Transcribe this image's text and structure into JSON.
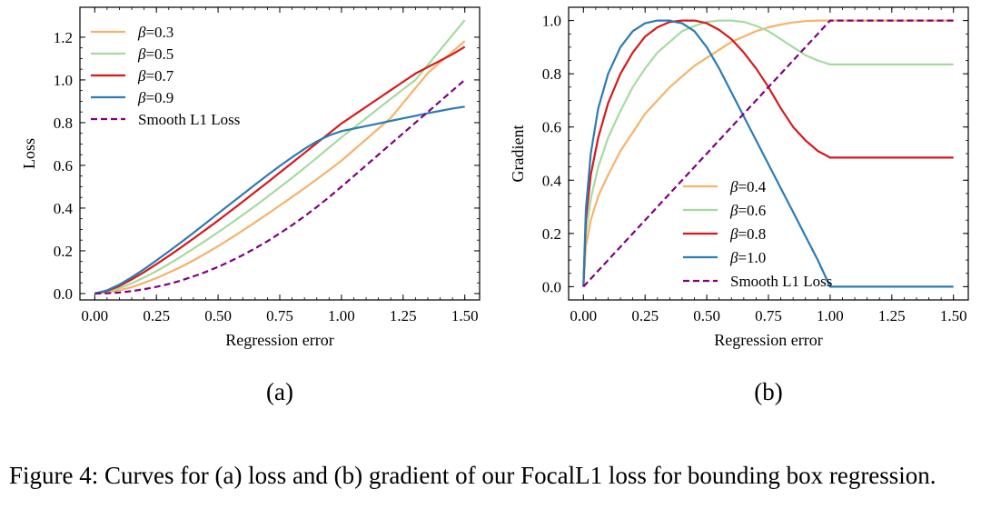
{
  "chart_data": [
    {
      "type": "line",
      "panel_label": "(a)",
      "xlabel": "Regression error",
      "ylabel": "Loss",
      "xlim": [
        -0.06,
        1.56
      ],
      "ylim": [
        -0.03,
        1.34
      ],
      "xticks": [
        0.0,
        0.25,
        0.5,
        0.75,
        1.0,
        1.25,
        1.5
      ],
      "xtick_labels": [
        "0.00",
        "0.25",
        "0.50",
        "0.75",
        "1.00",
        "1.25",
        "1.50"
      ],
      "yticks": [
        0.0,
        0.2,
        0.4,
        0.6,
        0.8,
        1.0,
        1.2
      ],
      "ytick_labels": [
        "0.0",
        "0.2",
        "0.4",
        "0.6",
        "0.8",
        "1.0",
        "1.2"
      ],
      "legend_position": "top-left",
      "series": [
        {
          "name": "β=0.3",
          "legend_prefix": "β",
          "legend_suffix": "=0.3",
          "color": "#f7b26b",
          "style": "solid",
          "x": [
            0,
            0.05,
            0.1,
            0.15,
            0.2,
            0.25,
            0.3,
            0.35,
            0.4,
            0.45,
            0.5,
            0.55,
            0.6,
            0.65,
            0.7,
            0.75,
            0.8,
            0.85,
            0.9,
            0.95,
            1.0,
            1.05,
            1.1,
            1.15,
            1.2,
            1.25,
            1.3,
            1.35,
            1.4,
            1.45,
            1.5
          ],
          "y": [
            0,
            0.005,
            0.015,
            0.03,
            0.05,
            0.072,
            0.098,
            0.125,
            0.155,
            0.188,
            0.222,
            0.258,
            0.295,
            0.333,
            0.372,
            0.412,
            0.452,
            0.493,
            0.535,
            0.578,
            0.622,
            0.672,
            0.722,
            0.772,
            0.822,
            0.892,
            0.962,
            1.032,
            1.082,
            1.132,
            1.182
          ]
        },
        {
          "name": "β=0.5",
          "legend_prefix": "β",
          "legend_suffix": "=0.5",
          "color": "#a6dba0",
          "style": "solid",
          "x": [
            0,
            0.05,
            0.1,
            0.15,
            0.2,
            0.25,
            0.3,
            0.35,
            0.4,
            0.45,
            0.5,
            0.55,
            0.6,
            0.65,
            0.7,
            0.75,
            0.8,
            0.85,
            0.9,
            0.95,
            1.0,
            1.05,
            1.1,
            1.15,
            1.2,
            1.25,
            1.3,
            1.35,
            1.4,
            1.45,
            1.5
          ],
          "y": [
            0,
            0.008,
            0.025,
            0.048,
            0.075,
            0.105,
            0.138,
            0.173,
            0.21,
            0.248,
            0.287,
            0.327,
            0.368,
            0.41,
            0.453,
            0.497,
            0.542,
            0.588,
            0.635,
            0.683,
            0.731,
            0.776,
            0.821,
            0.866,
            0.911,
            0.956,
            1.0,
            1.07,
            1.14,
            1.21,
            1.28
          ]
        },
        {
          "name": "β=0.7",
          "legend_prefix": "β",
          "legend_suffix": "=0.7",
          "color": "#d7191c",
          "style": "solid",
          "x": [
            0,
            0.05,
            0.1,
            0.15,
            0.2,
            0.25,
            0.3,
            0.35,
            0.4,
            0.45,
            0.5,
            0.55,
            0.6,
            0.65,
            0.7,
            0.75,
            0.8,
            0.85,
            0.9,
            0.95,
            1.0,
            1.05,
            1.1,
            1.15,
            1.2,
            1.25,
            1.3,
            1.35,
            1.4,
            1.45,
            1.5
          ],
          "y": [
            0,
            0.012,
            0.035,
            0.066,
            0.1,
            0.137,
            0.176,
            0.216,
            0.257,
            0.299,
            0.342,
            0.386,
            0.43,
            0.475,
            0.52,
            0.566,
            0.612,
            0.658,
            0.704,
            0.75,
            0.796,
            0.835,
            0.874,
            0.913,
            0.952,
            0.991,
            1.03,
            1.06,
            1.09,
            1.12,
            1.155
          ]
        },
        {
          "name": "β=0.9",
          "legend_prefix": "β",
          "legend_suffix": "=0.9",
          "color": "#2c7bb6",
          "style": "solid",
          "x": [
            0,
            0.05,
            0.1,
            0.15,
            0.2,
            0.25,
            0.3,
            0.35,
            0.4,
            0.45,
            0.5,
            0.55,
            0.6,
            0.65,
            0.7,
            0.75,
            0.8,
            0.85,
            0.9,
            0.95,
            1.0,
            1.05,
            1.1,
            1.15,
            1.2,
            1.25,
            1.3,
            1.35,
            1.4,
            1.45,
            1.5
          ],
          "y": [
            0,
            0.015,
            0.042,
            0.076,
            0.114,
            0.155,
            0.197,
            0.24,
            0.284,
            0.329,
            0.375,
            0.42,
            0.465,
            0.51,
            0.554,
            0.597,
            0.638,
            0.677,
            0.712,
            0.74,
            0.76,
            0.772,
            0.784,
            0.796,
            0.808,
            0.82,
            0.832,
            0.844,
            0.855,
            0.866,
            0.875
          ]
        },
        {
          "name": "Smooth L1 Loss",
          "legend_prefix": "",
          "legend_suffix": "Smooth L1 Loss",
          "color": "#800080",
          "style": "dashed",
          "x": [
            0,
            0.05,
            0.1,
            0.15,
            0.2,
            0.25,
            0.3,
            0.35,
            0.4,
            0.45,
            0.5,
            0.55,
            0.6,
            0.65,
            0.7,
            0.75,
            0.8,
            0.85,
            0.9,
            0.95,
            1.0,
            1.05,
            1.1,
            1.15,
            1.2,
            1.25,
            1.3,
            1.35,
            1.4,
            1.45,
            1.5
          ],
          "y": [
            0,
            0.00125,
            0.005,
            0.01125,
            0.02,
            0.03125,
            0.045,
            0.06125,
            0.08,
            0.10125,
            0.125,
            0.15125,
            0.18,
            0.21125,
            0.245,
            0.28125,
            0.32,
            0.36125,
            0.405,
            0.45125,
            0.5,
            0.55,
            0.6,
            0.65,
            0.7,
            0.75,
            0.8,
            0.85,
            0.9,
            0.95,
            1.0
          ]
        }
      ]
    },
    {
      "type": "line",
      "panel_label": "(b)",
      "xlabel": "Regression error",
      "ylabel": "Gradient",
      "xlim": [
        -0.06,
        1.56
      ],
      "ylim": [
        -0.05,
        1.05
      ],
      "xticks": [
        0.0,
        0.25,
        0.5,
        0.75,
        1.0,
        1.25,
        1.5
      ],
      "xtick_labels": [
        "0.00",
        "0.25",
        "0.50",
        "0.75",
        "1.00",
        "1.25",
        "1.50"
      ],
      "yticks": [
        0.0,
        0.2,
        0.4,
        0.6,
        0.8,
        1.0
      ],
      "ytick_labels": [
        "0.0",
        "0.2",
        "0.4",
        "0.6",
        "0.8",
        "1.0"
      ],
      "legend_position": "center",
      "series": [
        {
          "name": "β=0.4",
          "legend_prefix": "β",
          "legend_suffix": "=0.4",
          "color": "#f7b26b",
          "style": "solid",
          "x": [
            0,
            0.01,
            0.03,
            0.06,
            0.1,
            0.15,
            0.2,
            0.25,
            0.3,
            0.35,
            0.4,
            0.45,
            0.5,
            0.55,
            0.6,
            0.65,
            0.7,
            0.75,
            0.8,
            0.85,
            0.9,
            0.95,
            1.0,
            1.05,
            1.1,
            1.15,
            1.2,
            1.25,
            1.3,
            1.35,
            1.4,
            1.45,
            1.5
          ],
          "y": [
            0,
            0.15,
            0.25,
            0.34,
            0.42,
            0.51,
            0.58,
            0.65,
            0.7,
            0.75,
            0.79,
            0.83,
            0.86,
            0.89,
            0.92,
            0.94,
            0.96,
            0.975,
            0.985,
            0.993,
            0.998,
            1.0,
            1.0,
            1.0,
            1.0,
            1.0,
            1.0,
            1.0,
            1.0,
            1.0,
            1.0,
            1.0,
            1.0
          ]
        },
        {
          "name": "β=0.6",
          "legend_prefix": "β",
          "legend_suffix": "=0.6",
          "color": "#a6dba0",
          "style": "solid",
          "x": [
            0,
            0.01,
            0.03,
            0.06,
            0.1,
            0.15,
            0.2,
            0.25,
            0.3,
            0.35,
            0.4,
            0.45,
            0.5,
            0.55,
            0.6,
            0.65,
            0.7,
            0.75,
            0.8,
            0.85,
            0.9,
            0.95,
            1.0,
            1.05,
            1.1,
            1.15,
            1.2,
            1.25,
            1.3,
            1.35,
            1.4,
            1.45,
            1.5
          ],
          "y": [
            0,
            0.2,
            0.33,
            0.45,
            0.56,
            0.66,
            0.75,
            0.82,
            0.88,
            0.92,
            0.96,
            0.98,
            0.995,
            1.0,
            1.0,
            0.995,
            0.98,
            0.96,
            0.93,
            0.9,
            0.87,
            0.85,
            0.835,
            0.835,
            0.835,
            0.835,
            0.835,
            0.835,
            0.835,
            0.835,
            0.835,
            0.835,
            0.835
          ]
        },
        {
          "name": "β=0.8",
          "legend_prefix": "β",
          "legend_suffix": "=0.8",
          "color": "#d7191c",
          "style": "solid",
          "x": [
            0,
            0.01,
            0.03,
            0.06,
            0.1,
            0.15,
            0.2,
            0.25,
            0.3,
            0.35,
            0.4,
            0.45,
            0.5,
            0.55,
            0.6,
            0.65,
            0.7,
            0.75,
            0.8,
            0.85,
            0.9,
            0.95,
            1.0,
            1.05,
            1.1,
            1.15,
            1.2,
            1.25,
            1.3,
            1.35,
            1.4,
            1.45,
            1.5
          ],
          "y": [
            0,
            0.25,
            0.42,
            0.56,
            0.69,
            0.8,
            0.88,
            0.94,
            0.975,
            0.995,
            1.0,
            1.0,
            0.99,
            0.965,
            0.93,
            0.88,
            0.82,
            0.75,
            0.67,
            0.6,
            0.55,
            0.51,
            0.485,
            0.485,
            0.485,
            0.485,
            0.485,
            0.485,
            0.485,
            0.485,
            0.485,
            0.485,
            0.485
          ]
        },
        {
          "name": "β=1.0",
          "legend_prefix": "β",
          "legend_suffix": "=1.0",
          "color": "#2c7bb6",
          "style": "solid",
          "x": [
            0,
            0.01,
            0.03,
            0.06,
            0.1,
            0.15,
            0.2,
            0.25,
            0.3,
            0.35,
            0.37,
            0.4,
            0.45,
            0.5,
            0.55,
            0.6,
            0.65,
            0.7,
            0.75,
            0.8,
            0.85,
            0.9,
            0.95,
            1.0,
            1.05,
            1.1,
            1.15,
            1.2,
            1.25,
            1.3,
            1.35,
            1.4,
            1.45,
            1.5
          ],
          "y": [
            0,
            0.29,
            0.5,
            0.67,
            0.8,
            0.9,
            0.96,
            0.99,
            1.0,
            1.0,
            0.995,
            0.99,
            0.96,
            0.9,
            0.82,
            0.73,
            0.64,
            0.55,
            0.46,
            0.37,
            0.28,
            0.19,
            0.1,
            0.0,
            0.0,
            0.0,
            0.0,
            0.0,
            0.0,
            0.0,
            0.0,
            0.0,
            0.0,
            0.0
          ]
        },
        {
          "name": "Smooth L1 Loss",
          "legend_prefix": "",
          "legend_suffix": "Smooth L1 Loss",
          "color": "#800080",
          "style": "dashed",
          "x": [
            0,
            1.0,
            1.5
          ],
          "y": [
            0,
            1.0,
            1.0
          ]
        }
      ]
    }
  ],
  "caption": "Figure 4: Curves for (a) loss and (b) gradient of our FocalL1 loss for bounding box regression."
}
